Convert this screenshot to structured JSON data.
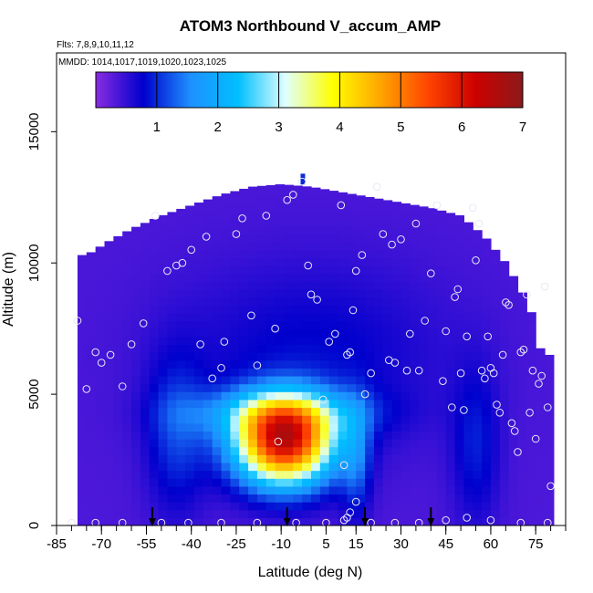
{
  "chart_data": {
    "type": "heatmap",
    "title": "ATOM3 Northbound V_accum_AMP",
    "subtitle_flights": "Flts: 7,8,9,10,11,12",
    "subtitle_dates": "MMDD: 1014,1017,1019,1020,1023,1025",
    "xlabel": "Latitude (deg N)",
    "ylabel": "Altitude (m)",
    "xlim": [
      -85,
      85
    ],
    "ylim": [
      0,
      18000
    ],
    "x_ticks": [
      -85,
      -70,
      -55,
      -40,
      -25,
      -10,
      5,
      15,
      30,
      45,
      60,
      75
    ],
    "y_ticks": [
      0,
      5000,
      10000,
      15000
    ],
    "colorbar": {
      "range": [
        0,
        7
      ],
      "ticks": [
        1,
        2,
        3,
        4,
        5,
        6,
        7
      ],
      "colors": [
        "#8a2be2",
        "#0000cd",
        "#1e90ff",
        "#00bfff",
        "#e0ffff",
        "#ffff00",
        "#ffa500",
        "#ff4500",
        "#cd0000",
        "#8b1a1a"
      ]
    },
    "arrow_latitudes": [
      -53,
      -8,
      18,
      40
    ],
    "cloud_ceiling": [
      [
        -75,
        10300
      ],
      [
        -68,
        10800
      ],
      [
        -60,
        11300
      ],
      [
        -50,
        11800
      ],
      [
        -40,
        12200
      ],
      [
        -30,
        12600
      ],
      [
        -20,
        12900
      ],
      [
        -10,
        13000
      ],
      [
        0,
        12900
      ],
      [
        10,
        12700
      ],
      [
        20,
        12500
      ],
      [
        30,
        12300
      ],
      [
        40,
        12100
      ],
      [
        50,
        11800
      ],
      [
        58,
        11000
      ],
      [
        65,
        10000
      ],
      [
        70,
        9000
      ],
      [
        74,
        8000
      ],
      [
        77,
        6500
      ]
    ],
    "peak": {
      "lat": -9,
      "alt": 3200,
      "value": 6.5
    },
    "sample_points": [
      [
        -78,
        7800
      ],
      [
        -75,
        5200
      ],
      [
        -72,
        6600
      ],
      [
        -70,
        6200
      ],
      [
        -67,
        6500
      ],
      [
        -63,
        5300
      ],
      [
        -60,
        6900
      ],
      [
        -56,
        7700
      ],
      [
        -52,
        11800
      ],
      [
        -48,
        9700
      ],
      [
        -45,
        9900
      ],
      [
        -43,
        10000
      ],
      [
        -40,
        10500
      ],
      [
        -37,
        6900
      ],
      [
        -35,
        11000
      ],
      [
        -33,
        5600
      ],
      [
        -30,
        6000
      ],
      [
        -29,
        7000
      ],
      [
        -25,
        11100
      ],
      [
        -23,
        11700
      ],
      [
        -20,
        8000
      ],
      [
        -18,
        6100
      ],
      [
        -15,
        11800
      ],
      [
        -12,
        7500
      ],
      [
        -8,
        12400
      ],
      [
        -6,
        12600
      ],
      [
        -3,
        13100
      ],
      [
        -1,
        9900
      ],
      [
        0,
        8800
      ],
      [
        2,
        8600
      ],
      [
        4,
        4800
      ],
      [
        6,
        7000
      ],
      [
        8,
        7300
      ],
      [
        10,
        12200
      ],
      [
        12,
        6500
      ],
      [
        13,
        6600
      ],
      [
        14,
        8200
      ],
      [
        15,
        9700
      ],
      [
        17,
        10300
      ],
      [
        18,
        5000
      ],
      [
        20,
        5800
      ],
      [
        22,
        12900
      ],
      [
        24,
        11100
      ],
      [
        26,
        6300
      ],
      [
        27,
        10700
      ],
      [
        28,
        6200
      ],
      [
        30,
        10900
      ],
      [
        32,
        5900
      ],
      [
        33,
        7300
      ],
      [
        35,
        11500
      ],
      [
        36,
        5900
      ],
      [
        38,
        7800
      ],
      [
        40,
        9600
      ],
      [
        42,
        12200
      ],
      [
        44,
        5500
      ],
      [
        45,
        7400
      ],
      [
        47,
        4500
      ],
      [
        48,
        8700
      ],
      [
        49,
        9000
      ],
      [
        50,
        5800
      ],
      [
        51,
        4400
      ],
      [
        52,
        7200
      ],
      [
        54,
        12100
      ],
      [
        55,
        10100
      ],
      [
        56,
        11500
      ],
      [
        57,
        5900
      ],
      [
        58,
        5600
      ],
      [
        59,
        7200
      ],
      [
        60,
        6000
      ],
      [
        61,
        5800
      ],
      [
        62,
        4600
      ],
      [
        63,
        4300
      ],
      [
        64,
        6500
      ],
      [
        65,
        8500
      ],
      [
        66,
        8400
      ],
      [
        67,
        3900
      ],
      [
        68,
        3600
      ],
      [
        69,
        2800
      ],
      [
        70,
        6600
      ],
      [
        71,
        6700
      ],
      [
        72,
        8800
      ],
      [
        73,
        4300
      ],
      [
        74,
        5900
      ],
      [
        75,
        3300
      ],
      [
        76,
        5400
      ],
      [
        77,
        5700
      ],
      [
        78,
        9100
      ],
      [
        79,
        4500
      ],
      [
        80,
        1500
      ],
      [
        -80,
        100
      ],
      [
        -72,
        100
      ],
      [
        -63,
        100
      ],
      [
        -50,
        100
      ],
      [
        -41,
        100
      ],
      [
        -30,
        100
      ],
      [
        -18,
        100
      ],
      [
        -5,
        100
      ],
      [
        5,
        100
      ],
      [
        11,
        200
      ],
      [
        13,
        500
      ],
      [
        15,
        900
      ],
      [
        20,
        100
      ],
      [
        28,
        100
      ],
      [
        36,
        100
      ],
      [
        45,
        200
      ],
      [
        52,
        300
      ],
      [
        60,
        200
      ],
      [
        70,
        100
      ],
      [
        79,
        100
      ],
      [
        -11,
        3200
      ],
      [
        11,
        2300
      ],
      [
        12,
        300
      ]
    ]
  }
}
